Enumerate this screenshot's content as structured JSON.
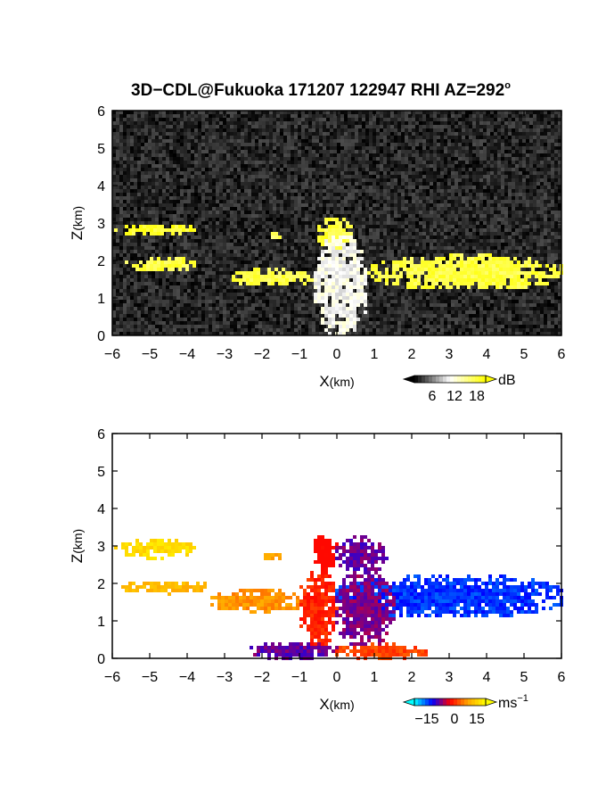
{
  "title": "3D−CDL@Fukuoka 171207 122947 RHI AZ=292",
  "title_sup": "o",
  "chart_data": [
    {
      "type": "heatmap",
      "panel": "reflectivity",
      "xlabel_main": "X",
      "xlabel_unit": "(km)",
      "ylabel_main": "Z",
      "ylabel_unit": "(km)",
      "xlim": [
        -6,
        6
      ],
      "ylim": [
        0,
        6
      ],
      "xticks": [
        "−6",
        "−5",
        "−4",
        "−3",
        "−2",
        "−1",
        "0",
        "1",
        "2",
        "3",
        "4",
        "5",
        "6"
      ],
      "yticks": [
        "0",
        "1",
        "2",
        "3",
        "4",
        "5",
        "6"
      ],
      "colorbar": {
        "unit": "dB",
        "ticks": [
          "6",
          "12",
          "18"
        ],
        "range": [
          0,
          22
        ],
        "colors": [
          "#000000",
          "#ffffff",
          "#ffff00"
        ]
      },
      "background_noise_level": 3,
      "layers": [
        {
          "x": [
            -5.9,
            -3.8
          ],
          "z": [
            2.7,
            2.95
          ],
          "value": 20
        },
        {
          "x": [
            -1.8,
            -1.5
          ],
          "z": [
            2.6,
            2.8
          ],
          "value": 18
        },
        {
          "x": [
            -0.5,
            0.4
          ],
          "z": [
            2.35,
            3.1
          ],
          "value": 19
        },
        {
          "x": [
            -5.6,
            -3.7
          ],
          "z": [
            1.75,
            2.05
          ],
          "value": 19
        },
        {
          "x": [
            -2.9,
            -0.5
          ],
          "z": [
            1.35,
            1.75
          ],
          "value": 19
        },
        {
          "x": [
            0.9,
            6.0
          ],
          "z": [
            1.25,
            2.1
          ],
          "value": 19
        },
        {
          "x": [
            -0.6,
            0.8
          ],
          "z": [
            0.0,
            2.6
          ],
          "value": 11
        }
      ]
    },
    {
      "type": "heatmap",
      "panel": "velocity",
      "xlabel_main": "X",
      "xlabel_unit": "(km)",
      "ylabel_main": "Z",
      "ylabel_unit": "(km)",
      "xlim": [
        -6,
        6
      ],
      "ylim": [
        0,
        6
      ],
      "xticks": [
        "−6",
        "−5",
        "−4",
        "−3",
        "−2",
        "−1",
        "0",
        "1",
        "2",
        "3",
        "4",
        "5",
        "6"
      ],
      "yticks": [
        "0",
        "1",
        "2",
        "3",
        "4",
        "5",
        "6"
      ],
      "colorbar": {
        "unit": "ms",
        "unit_sup": "−1",
        "ticks": [
          "−15",
          "0",
          "15"
        ],
        "range": [
          -20,
          20
        ],
        "colors": [
          "#00ffff",
          "#0000ff",
          "#ff0000",
          "#ffa500",
          "#ffff00"
        ]
      },
      "layers": [
        {
          "x": [
            -5.9,
            -3.8
          ],
          "z": [
            2.7,
            3.15
          ],
          "value": 16
        },
        {
          "x": [
            -1.9,
            -1.5
          ],
          "z": [
            2.6,
            2.8
          ],
          "value": 10
        },
        {
          "x": [
            -0.6,
            0.0
          ],
          "z": [
            2.3,
            3.3
          ],
          "value": -1,
          "sign": "warm"
        },
        {
          "x": [
            0.0,
            1.3
          ],
          "z": [
            2.3,
            3.2
          ],
          "value": -6
        },
        {
          "x": [
            -5.7,
            -3.3
          ],
          "z": [
            1.75,
            2.05
          ],
          "value": 12
        },
        {
          "x": [
            -3.3,
            -0.8
          ],
          "z": [
            1.25,
            1.8
          ],
          "value": 9
        },
        {
          "x": [
            -1.0,
            0.0
          ],
          "z": [
            0.3,
            2.3
          ],
          "value": 2,
          "sign": "warm"
        },
        {
          "x": [
            0.0,
            6.0
          ],
          "z": [
            1.1,
            2.2
          ],
          "value": -12
        },
        {
          "x": [
            0.0,
            1.5
          ],
          "z": [
            0.3,
            2.3
          ],
          "value": -5
        },
        {
          "x": [
            -2.3,
            0.0
          ],
          "z": [
            0.0,
            0.4
          ],
          "value": -6
        },
        {
          "x": [
            0.0,
            2.4
          ],
          "z": [
            0.0,
            0.35
          ],
          "value": 4,
          "sign": "warm"
        }
      ]
    }
  ]
}
